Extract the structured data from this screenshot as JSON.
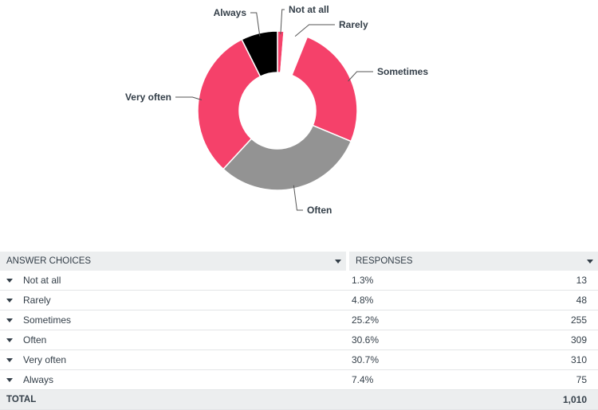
{
  "chart_data": {
    "type": "pie",
    "categories": [
      "Not at all",
      "Rarely",
      "Sometimes",
      "Often",
      "Very often",
      "Always"
    ],
    "values": [
      1.3,
      4.8,
      25.2,
      30.6,
      30.7,
      7.4
    ],
    "colors": [
      "#f5416a",
      "#ffffff",
      "#f5416a",
      "#939393",
      "#f5416a",
      "#000000"
    ],
    "donut": true
  },
  "table": {
    "headers": {
      "choices": "ANSWER CHOICES",
      "responses": "RESPONSES"
    },
    "rows": [
      {
        "choice": "Not at all",
        "percent": "1.3%",
        "count": "13"
      },
      {
        "choice": "Rarely",
        "percent": "4.8%",
        "count": "48"
      },
      {
        "choice": "Sometimes",
        "percent": "25.2%",
        "count": "255"
      },
      {
        "choice": "Often",
        "percent": "30.6%",
        "count": "309"
      },
      {
        "choice": "Very often",
        "percent": "30.7%",
        "count": "310"
      },
      {
        "choice": "Always",
        "percent": "7.4%",
        "count": "75"
      }
    ],
    "total_label": "TOTAL",
    "total_count": "1,010"
  }
}
